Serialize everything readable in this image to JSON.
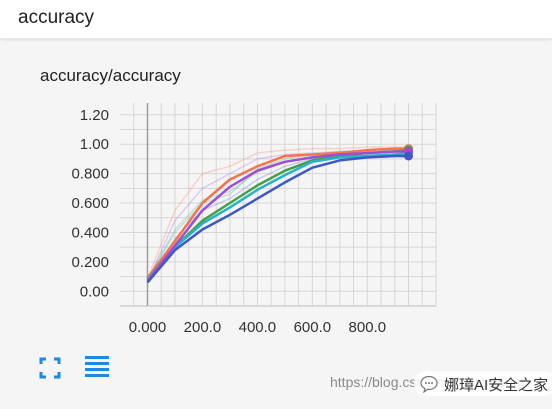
{
  "header": {
    "title": "accuracy"
  },
  "card": {
    "title": "accuracy/accuracy",
    "buttons": {
      "expand_icon": "fullscreen-icon",
      "data_icon": "list-lines-icon"
    }
  },
  "watermark": {
    "text": "https://blog.csdn.net/eastmount"
  },
  "brand": {
    "name": "娜璋AI安全之家",
    "logo_icon": "chat-bubble-icon"
  },
  "colors": {
    "accent": "#1e88e5",
    "series_orange": "#f4744b",
    "series_green": "#43a047",
    "series_teal": "#26b3c5",
    "series_purple": "#9c4fd6",
    "series_blue": "#3f57c9"
  },
  "chart_data": {
    "type": "line",
    "title": "accuracy/accuracy",
    "xlabel": "",
    "ylabel": "",
    "xlim": [
      -100,
      1050
    ],
    "ylim": [
      -0.1,
      1.28
    ],
    "x_ticks": [
      "0.000",
      "200.0",
      "400.0",
      "600.0",
      "800.0"
    ],
    "y_ticks": [
      "0.00",
      "0.200",
      "0.400",
      "0.600",
      "0.800",
      "1.00",
      "1.20"
    ],
    "grid": true,
    "smoothing": true,
    "x": [
      0,
      100,
      200,
      300,
      400,
      500,
      600,
      700,
      800,
      900,
      950
    ],
    "series": [
      {
        "color": "#f4744b",
        "values": [
          0.09,
          0.34,
          0.6,
          0.76,
          0.85,
          0.92,
          0.93,
          0.94,
          0.96,
          0.97,
          0.97
        ],
        "raw": [
          0.09,
          0.55,
          0.8,
          0.85,
          0.94,
          0.96,
          0.97,
          0.97,
          0.98,
          0.98,
          0.98
        ]
      },
      {
        "color": "#43a047",
        "values": [
          0.08,
          0.3,
          0.48,
          0.6,
          0.72,
          0.82,
          0.89,
          0.92,
          0.94,
          0.95,
          0.96
        ],
        "raw": [
          0.08,
          0.4,
          0.6,
          0.66,
          0.83,
          0.9,
          0.93,
          0.95,
          0.96,
          0.96,
          0.96
        ]
      },
      {
        "color": "#26b3c5",
        "values": [
          0.08,
          0.3,
          0.46,
          0.57,
          0.69,
          0.79,
          0.88,
          0.91,
          0.92,
          0.93,
          0.94
        ],
        "raw": [
          0.08,
          0.42,
          0.62,
          0.68,
          0.81,
          0.88,
          0.92,
          0.93,
          0.93,
          0.93,
          0.94
        ]
      },
      {
        "color": "#9c4fd6",
        "values": [
          0.07,
          0.31,
          0.55,
          0.71,
          0.82,
          0.88,
          0.91,
          0.93,
          0.94,
          0.95,
          0.95
        ],
        "raw": [
          0.07,
          0.48,
          0.7,
          0.8,
          0.9,
          0.93,
          0.94,
          0.95,
          0.95,
          0.95,
          0.95
        ]
      },
      {
        "color": "#3f57c9",
        "values": [
          0.06,
          0.28,
          0.42,
          0.52,
          0.63,
          0.74,
          0.84,
          0.89,
          0.91,
          0.92,
          0.92
        ],
        "raw": [
          0.06,
          0.36,
          0.55,
          0.63,
          0.76,
          0.85,
          0.9,
          0.92,
          0.92,
          0.92,
          0.91
        ]
      }
    ]
  }
}
